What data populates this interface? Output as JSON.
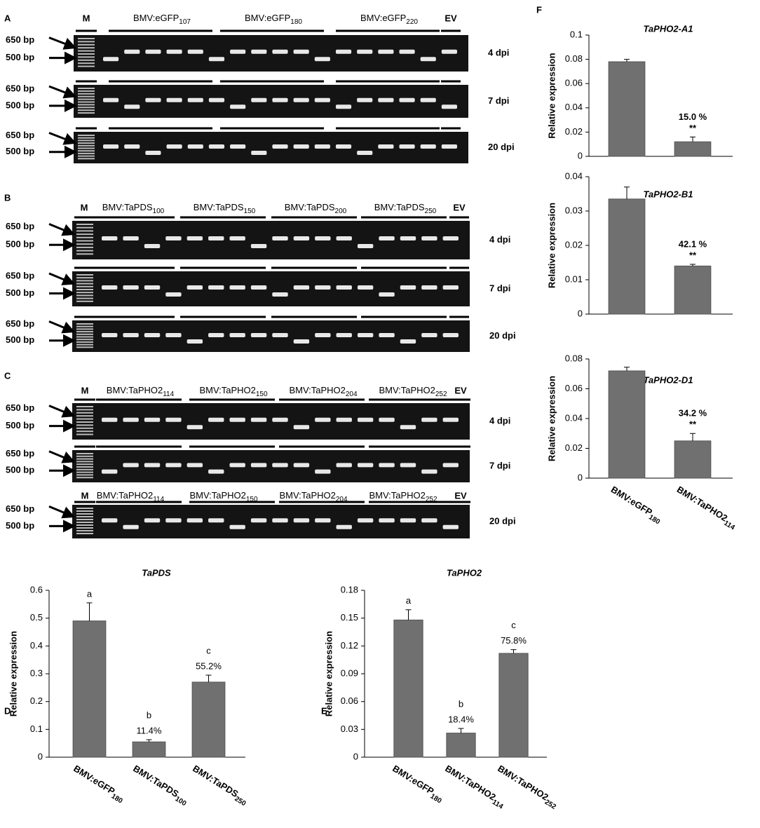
{
  "gels": [
    {
      "label": "A",
      "marker": "M",
      "groups": [
        {
          "text": "BMV:eGFP",
          "sub": "107"
        },
        {
          "text": "BMV:eGFP",
          "sub": "180"
        },
        {
          "text": "BMV:eGFP",
          "sub": "220"
        }
      ],
      "ev": "EV",
      "bp_labels": [
        "650 bp",
        "500 bp"
      ],
      "rows": [
        "4 dpi",
        "7 dpi",
        "20 dpi"
      ]
    },
    {
      "label": "B",
      "marker": "M",
      "groups": [
        {
          "text": "BMV:TaPDS",
          "sub": "100"
        },
        {
          "text": "BMV:TaPDS",
          "sub": "150"
        },
        {
          "text": "BMV:TaPDS",
          "sub": "200"
        },
        {
          "text": "BMV:TaPDS",
          "sub": "250"
        }
      ],
      "ev": "EV",
      "bp_labels": [
        "650 bp",
        "500 bp"
      ],
      "rows": [
        "4 dpi",
        "7 dpi",
        "20 dpi"
      ]
    },
    {
      "label": "C",
      "marker": "M",
      "groups": [
        {
          "text": "BMV:TaPHO2",
          "sub": "114"
        },
        {
          "text": "BMV:TaPHO2",
          "sub": "150"
        },
        {
          "text": "BMV:TaPHO2",
          "sub": "204"
        },
        {
          "text": "BMV:TaPHO2",
          "sub": "252"
        }
      ],
      "ev": "EV",
      "bp_labels": [
        "650 bp",
        "500 bp"
      ],
      "rows": [
        "4 dpi",
        "7 dpi",
        "20 dpi"
      ]
    }
  ],
  "chart_data": [
    {
      "panel": "D",
      "type": "bar",
      "title": "TaPDS",
      "ylabel": "Relative expression",
      "categories": [
        "BMV:eGFP",
        "BMV:TaPDS",
        "BMV:TaPDS"
      ],
      "category_subscripts": [
        "180",
        "100",
        "250"
      ],
      "values": [
        0.49,
        0.055,
        0.27
      ],
      "errors": [
        0.065,
        0.008,
        0.025
      ],
      "letters": [
        "a",
        "b",
        "c"
      ],
      "annotations": [
        null,
        "11.4%",
        "55.2%"
      ],
      "ylim": [
        0,
        0.6
      ],
      "yticks": [
        0,
        0.1,
        0.2,
        0.3,
        0.4,
        0.5,
        0.6
      ],
      "color": "#707070"
    },
    {
      "panel": "E",
      "type": "bar",
      "title": "TaPHO2",
      "ylabel": "Relative expression",
      "categories": [
        "BMV:eGFP",
        "BMV:TaPHO2",
        "BMV:TaPHO2"
      ],
      "category_subscripts": [
        "180",
        "114",
        "252"
      ],
      "values": [
        0.148,
        0.026,
        0.112
      ],
      "errors": [
        0.011,
        0.005,
        0.004
      ],
      "letters": [
        "a",
        "b",
        "c"
      ],
      "annotations": [
        null,
        "18.4%",
        "75.8%"
      ],
      "ylim": [
        0,
        0.18
      ],
      "yticks": [
        0,
        0.03,
        0.06,
        0.09,
        0.12,
        0.15,
        0.18
      ],
      "color": "#707070"
    },
    {
      "panel": "F",
      "type": "bar",
      "title": "TaPHO2-A1",
      "ylabel": "Relative expression",
      "values": [
        0.078,
        0.012
      ],
      "errors": [
        0.002,
        0.004
      ],
      "annotations": [
        null,
        "15.0 %"
      ],
      "significance": [
        null,
        "**"
      ],
      "ylim": [
        0,
        0.1
      ],
      "yticks": [
        0,
        0.02,
        0.04,
        0.06,
        0.08,
        0.1
      ],
      "color": "#707070"
    },
    {
      "type": "bar",
      "title": "TaPHO2-B1",
      "ylabel": "Relative expression",
      "values": [
        0.0335,
        0.014
      ],
      "errors": [
        0.0035,
        0.0005
      ],
      "annotations": [
        null,
        "42.1 %"
      ],
      "significance": [
        null,
        "**"
      ],
      "ylim": [
        0,
        0.04
      ],
      "yticks": [
        0,
        0.01,
        0.02,
        0.03,
        0.04
      ],
      "color": "#707070"
    },
    {
      "type": "bar",
      "title": "TaPHO2-D1",
      "ylabel": "Relative expression",
      "categories": [
        "BMV:eGFP",
        "BMV:TaPHO2"
      ],
      "category_subscripts": [
        "180",
        "114"
      ],
      "values": [
        0.072,
        0.025
      ],
      "errors": [
        0.0025,
        0.005
      ],
      "annotations": [
        null,
        "34.2 %"
      ],
      "significance": [
        null,
        "**"
      ],
      "ylim": [
        0,
        0.08
      ],
      "yticks": [
        0,
        0.02,
        0.04,
        0.06,
        0.08
      ],
      "color": "#707070"
    }
  ]
}
